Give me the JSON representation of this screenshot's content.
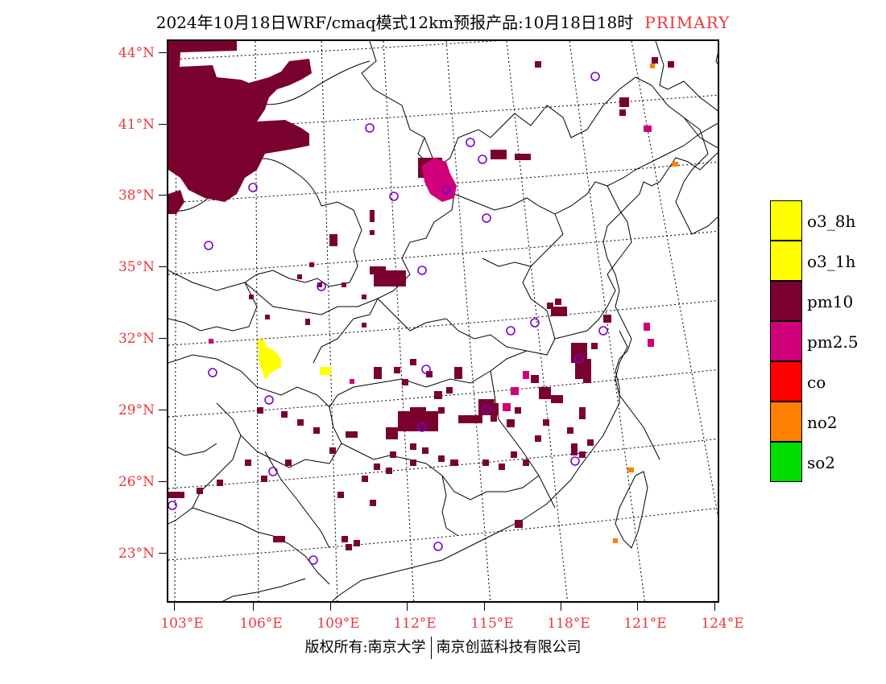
{
  "title": {
    "main": "2024年10月18日WRF/cmaq模式12km预报产品:10月18日18时",
    "tag": "PRIMARY"
  },
  "colors": {
    "label_red": "#e8383d",
    "pm10": "#7a0030",
    "pm25": "#d0007a",
    "o3": "#ffff00",
    "co": "#ff0000",
    "no2": "#ff7f00",
    "so2": "#00dd00",
    "station": "#7a00d0",
    "boundary": "#000000"
  },
  "map": {
    "lat_labels": [
      "44°N",
      "41°N",
      "38°N",
      "35°N",
      "32°N",
      "29°N",
      "26°N",
      "23°N"
    ],
    "lon_labels": [
      "103°E",
      "106°E",
      "109°E",
      "112°E",
      "115°E",
      "118°E",
      "121°E",
      "124°E"
    ],
    "pollutant_shown": "pm10, pm2.5, o3, no2"
  },
  "legend": [
    {
      "label": "o3_8h",
      "color": "#ffff00",
      "icon": "color-swatch"
    },
    {
      "label": "o3_1h",
      "color": "#ffff00",
      "icon": "color-swatch"
    },
    {
      "label": "pm10",
      "color": "#7a0030",
      "icon": "color-swatch"
    },
    {
      "label": "pm2.5",
      "color": "#d0007a",
      "icon": "color-swatch"
    },
    {
      "label": "co",
      "color": "#ff0000",
      "icon": "color-swatch"
    },
    {
      "label": "no2",
      "color": "#ff7f00",
      "icon": "color-swatch"
    },
    {
      "label": "so2",
      "color": "#00dd00",
      "icon": "color-swatch"
    }
  ],
  "footer": {
    "left": "版权所有:南京大学",
    "right": "南京创蓝科技有限公司"
  }
}
